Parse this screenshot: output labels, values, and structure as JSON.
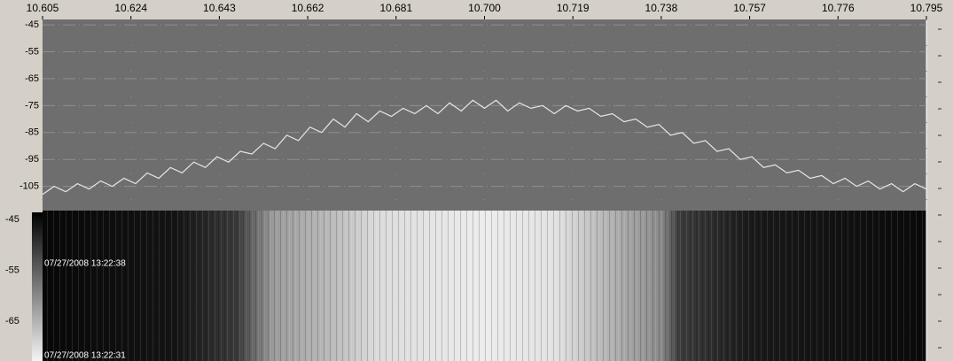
{
  "chart_data": [
    {
      "type": "line",
      "x": [
        10.605,
        10.6075,
        10.61,
        10.6125,
        10.615,
        10.6175,
        10.62,
        10.6225,
        10.625,
        10.6275,
        10.63,
        10.6325,
        10.635,
        10.6375,
        10.64,
        10.6425,
        10.645,
        10.6475,
        10.65,
        10.6525,
        10.655,
        10.6575,
        10.66,
        10.6625,
        10.665,
        10.6675,
        10.67,
        10.6725,
        10.675,
        10.6775,
        10.68,
        10.6825,
        10.685,
        10.6875,
        10.69,
        10.6925,
        10.695,
        10.6975,
        10.7,
        10.7025,
        10.705,
        10.7075,
        10.71,
        10.7125,
        10.715,
        10.7175,
        10.72,
        10.7225,
        10.725,
        10.7275,
        10.73,
        10.7325,
        10.735,
        10.7375,
        10.74,
        10.7425,
        10.745,
        10.7475,
        10.75,
        10.7525,
        10.755,
        10.7575,
        10.76,
        10.7625,
        10.765,
        10.7675,
        10.77,
        10.7725,
        10.775,
        10.7775,
        10.78,
        10.7825,
        10.785,
        10.7875,
        10.79,
        10.7925,
        10.795
      ],
      "values": [
        -108,
        -105,
        -107,
        -104,
        -106,
        -103,
        -105,
        -102,
        -104,
        -100,
        -102,
        -98,
        -100,
        -96,
        -98,
        -94,
        -96,
        -92,
        -93,
        -89,
        -91,
        -86,
        -88,
        -83,
        -85,
        -80,
        -83,
        -78,
        -81,
        -77,
        -79,
        -76,
        -78,
        -75,
        -78,
        -74,
        -77,
        -73,
        -76,
        -73,
        -77,
        -74,
        -76,
        -75,
        -78,
        -75,
        -77,
        -76,
        -79,
        -78,
        -81,
        -80,
        -83,
        -82,
        -86,
        -85,
        -89,
        -88,
        -92,
        -91,
        -95,
        -94,
        -98,
        -97,
        -100,
        -99,
        -102,
        -101,
        -104,
        -102,
        -105,
        -103,
        -106,
        -104,
        -107,
        -104,
        -106
      ],
      "color": "#e6e6e6",
      "xlim": [
        10.605,
        10.795
      ],
      "xticks": [
        10.605,
        10.624,
        10.643,
        10.662,
        10.681,
        {
          "value": 10.7,
          "label": "10.700"
        },
        10.719,
        10.738,
        10.757,
        10.776,
        10.795
      ],
      "ylim": [
        -114,
        -43
      ],
      "yticks": [
        -45,
        -55,
        -65,
        -75,
        -85,
        -95,
        -105
      ],
      "grid": true
    },
    {
      "type": "waterfall",
      "colorbar_ticks": [
        -45,
        -55,
        -65
      ],
      "timestamps": [
        "07/27/2008 13:22:38",
        "07/27/2008 13:22:31"
      ]
    }
  ]
}
